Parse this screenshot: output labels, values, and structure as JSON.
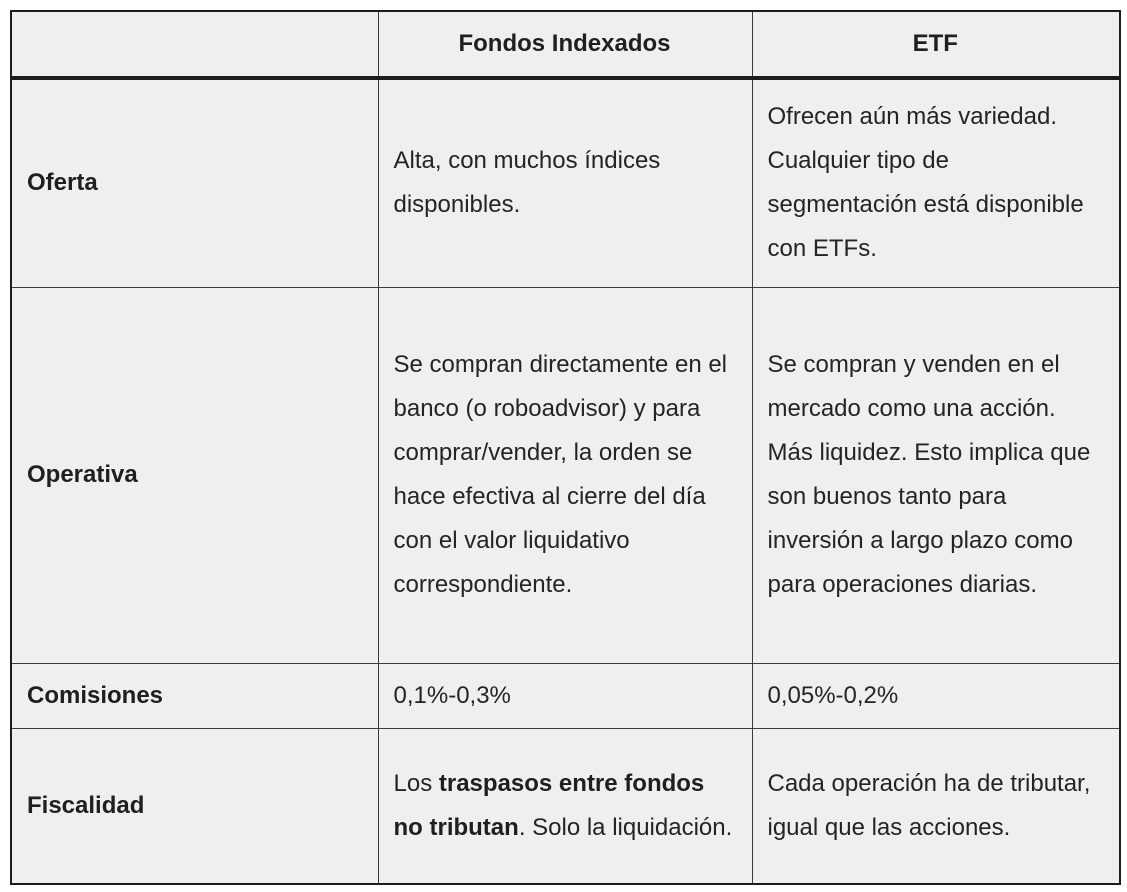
{
  "table": {
    "background_color": "#efefef",
    "outer_border_color": "#1d1d1d",
    "inner_border_color": "#3b3b3b",
    "text_color": "#242424",
    "header": {
      "col1": "",
      "col2": "Fondos Indexados",
      "col3": "ETF"
    },
    "rows": [
      {
        "id": "oferta",
        "label": "Oferta",
        "fondos": [
          {
            "text": "Alta, con muchos índices disponibles.",
            "bold": false
          }
        ],
        "etf": [
          {
            "text": "Ofrecen aún más variedad. Cualquier tipo de segmentación está disponible con ETFs.",
            "bold": false
          }
        ]
      },
      {
        "id": "operativa",
        "label": "Operativa",
        "fondos": [
          {
            "text": "Se compran directamente en el banco (o roboadvisor) y para comprar/vender, la orden se hace efectiva al cierre del día con el valor liquidativo correspondiente.",
            "bold": false
          }
        ],
        "etf": [
          {
            "text": "Se compran y venden en el mercado como una acción. Más liquidez. Esto implica que son buenos tanto para inversión a largo plazo como para operaciones diarias.",
            "bold": false
          }
        ]
      },
      {
        "id": "comisiones",
        "label": "Comisiones",
        "fondos": [
          {
            "text": "0,1%-0,3%",
            "bold": false
          }
        ],
        "etf": [
          {
            "text": "0,05%-0,2%",
            "bold": false
          }
        ]
      },
      {
        "id": "fiscalidad",
        "label": "Fiscalidad",
        "fondos": [
          {
            "text": "Los ",
            "bold": false
          },
          {
            "text": "traspasos entre fondos no tributan",
            "bold": true
          },
          {
            "text": ". Solo la liquidación.",
            "bold": false
          }
        ],
        "etf": [
          {
            "text": "Cada operación ha de tributar, igual que las acciones.",
            "bold": false
          }
        ]
      }
    ]
  }
}
